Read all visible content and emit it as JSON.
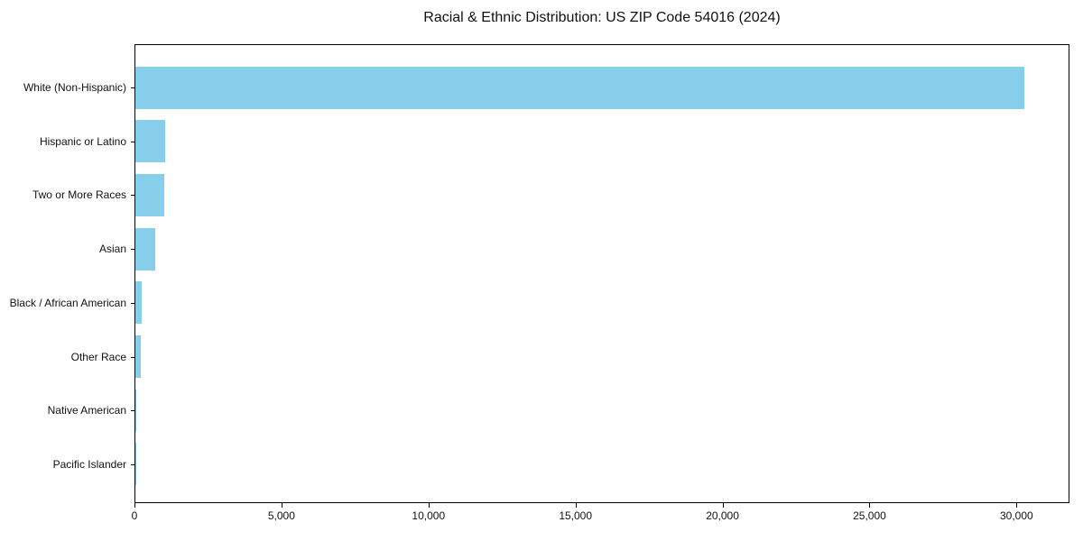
{
  "chart_data": {
    "type": "bar",
    "orientation": "horizontal",
    "title": "Racial & Ethnic Distribution: US ZIP Code 54016 (2024)",
    "categories": [
      "White (Non-Hispanic)",
      "Hispanic or Latino",
      "Two or More Races",
      "Asian",
      "Black / African American",
      "Other Race",
      "Native American",
      "Pacific Islander"
    ],
    "values": [
      30300,
      1020,
      990,
      680,
      210,
      170,
      30,
      10
    ],
    "xlabel": "",
    "ylabel": "",
    "xlim": [
      0,
      31800
    ],
    "xticks": [
      {
        "value": 0,
        "label": "0"
      },
      {
        "value": 5000,
        "label": "5,000"
      },
      {
        "value": 10000,
        "label": "10,000"
      },
      {
        "value": 15000,
        "label": "15,000"
      },
      {
        "value": 20000,
        "label": "20,000"
      },
      {
        "value": 25000,
        "label": "25,000"
      },
      {
        "value": 30000,
        "label": "30,000"
      }
    ],
    "bar_color": "#87CEEB",
    "background": "#FFFFFF",
    "grid": false,
    "legend": "none"
  }
}
